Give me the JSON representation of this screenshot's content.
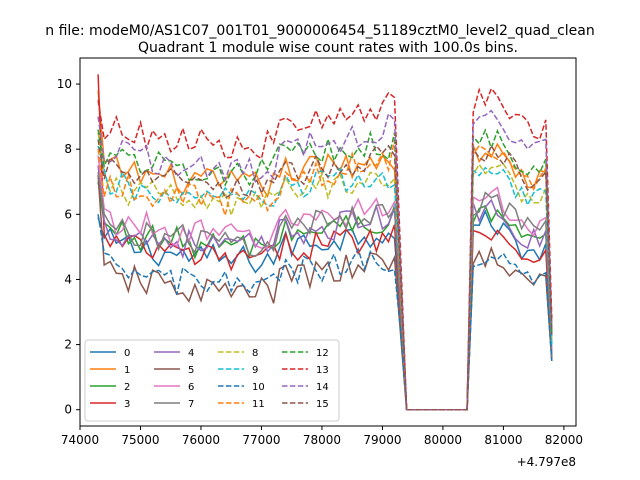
{
  "header": {
    "suptitle": "n file: modeM0/AS1C07_001T01_9000006454_51189cztM0_level2_quad_clean",
    "title": "Quadrant 1 module wise count rates with 100.0s bins.",
    "offset_text": "+4.797e8"
  },
  "chart_data": {
    "type": "line",
    "xlim": [
      74000,
      82200
    ],
    "ylim": [
      -0.5,
      10.8
    ],
    "x_ticks": [
      74000,
      75000,
      76000,
      77000,
      78000,
      79000,
      80000,
      81000,
      82000
    ],
    "y_ticks": [
      0,
      2,
      4,
      6,
      8,
      10
    ],
    "x_offset": 479700000,
    "legend_location": "lower-left",
    "legend_columns": 4,
    "grid": false,
    "segments": [
      {
        "start": 74300,
        "end": 79300,
        "step": 100,
        "shape": "active"
      },
      {
        "start": 79300,
        "end": 79400,
        "step": 100,
        "shape": "falloff"
      },
      {
        "start": 79400,
        "end": 80400,
        "step": 100,
        "shape": "zero"
      },
      {
        "start": 80400,
        "end": 80500,
        "step": 100,
        "shape": "rise"
      },
      {
        "start": 80500,
        "end": 81700,
        "step": 100,
        "shape": "active2"
      },
      {
        "start": 81700,
        "end": 81800,
        "step": 100,
        "shape": "tail"
      }
    ],
    "series": [
      {
        "name": "0",
        "color": "#1f77b4",
        "dash": "solid",
        "level": 5.2,
        "level2": 5.6,
        "start": 5.9,
        "end_val": 1.5
      },
      {
        "name": "1",
        "color": "#ff7f0e",
        "dash": "solid",
        "level": 7.5,
        "level2": 7.8,
        "start": 9.8,
        "end_val": 2.0
      },
      {
        "name": "2",
        "color": "#2ca02c",
        "dash": "solid",
        "level": 5.6,
        "level2": 5.9,
        "start": 7.0,
        "end_val": 1.6
      },
      {
        "name": "3",
        "color": "#d62728",
        "dash": "solid",
        "level": 5.2,
        "level2": 5.4,
        "start": 10.3,
        "end_val": 1.5
      },
      {
        "name": "4",
        "color": "#9467bd",
        "dash": "solid",
        "level": 5.6,
        "level2": 6.0,
        "start": 7.5,
        "end_val": 1.7
      },
      {
        "name": "5",
        "color": "#8c564b",
        "dash": "solid",
        "level": 4.2,
        "level2": 4.6,
        "start": 7.2,
        "end_val": 1.5
      },
      {
        "name": "6",
        "color": "#e377c2",
        "dash": "solid",
        "level": 5.9,
        "level2": 6.4,
        "start": 7.8,
        "end_val": 1.8
      },
      {
        "name": "7",
        "color": "#7f7f7f",
        "dash": "solid",
        "level": 5.7,
        "level2": 6.3,
        "start": 7.3,
        "end_val": 1.6
      },
      {
        "name": "8",
        "color": "#bcbd22",
        "dash": "dashed",
        "level": 6.9,
        "level2": 7.3,
        "start": 8.5,
        "end_val": 2.2
      },
      {
        "name": "9",
        "color": "#17becf",
        "dash": "dashed",
        "level": 7.0,
        "level2": 7.2,
        "start": 8.1,
        "end_val": 2.0
      },
      {
        "name": "10",
        "color": "#1f77b4",
        "dash": "dashed",
        "level": 4.4,
        "level2": 4.7,
        "start": 6.0,
        "end_val": 1.5
      },
      {
        "name": "11",
        "color": "#ff7f0e",
        "dash": "dashed",
        "level": 7.0,
        "level2": 7.9,
        "start": 8.0,
        "end_val": 2.6
      },
      {
        "name": "12",
        "color": "#2ca02c",
        "dash": "dashed",
        "level": 7.9,
        "level2": 8.2,
        "start": 8.6,
        "end_val": 2.4
      },
      {
        "name": "13",
        "color": "#d62728",
        "dash": "dashed",
        "level": 8.7,
        "level2": 9.4,
        "start": 9.5,
        "end_val": 2.8
      },
      {
        "name": "14",
        "color": "#9467bd",
        "dash": "dashed",
        "level": 8.0,
        "level2": 8.8,
        "start": 9.0,
        "end_val": 2.5
      },
      {
        "name": "15",
        "color": "#8c564b",
        "dash": "dashed",
        "level": 7.4,
        "level2": 7.8,
        "start": 8.3,
        "end_val": 2.3
      }
    ]
  }
}
